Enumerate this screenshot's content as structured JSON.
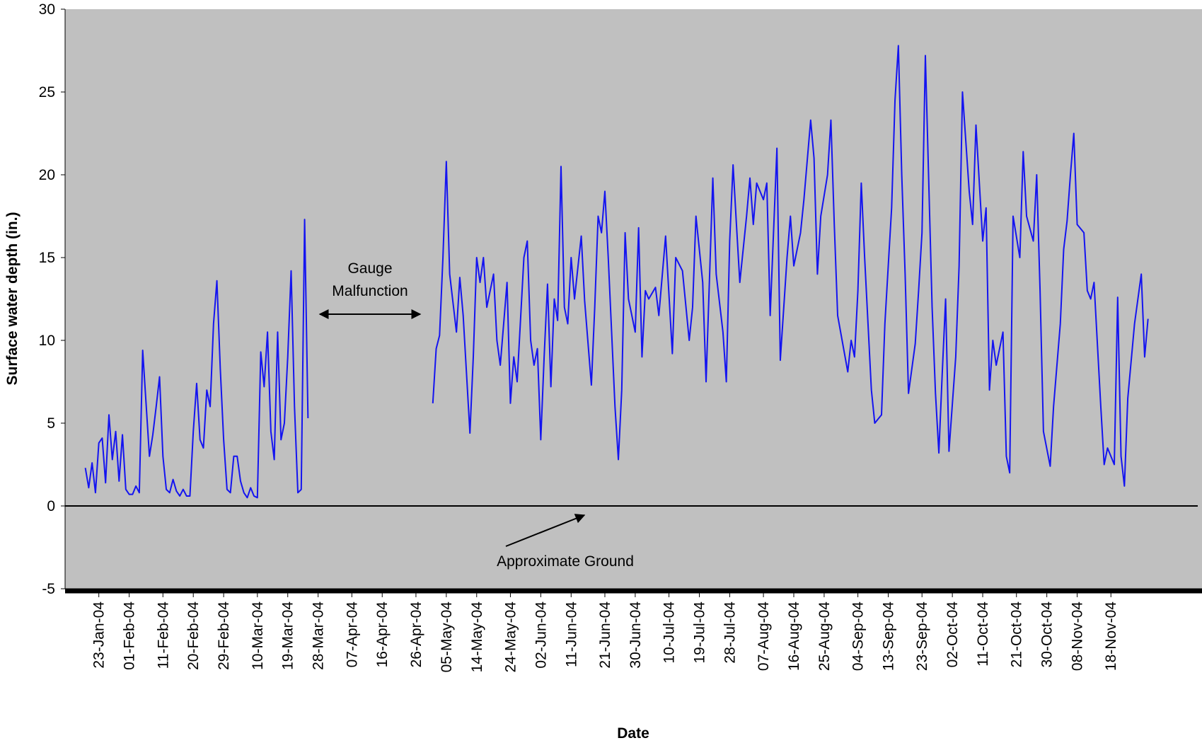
{
  "chart_data": {
    "type": "line",
    "x_label": "Date",
    "y_label": "Surface water depth (in.)",
    "xlim": [
      "2004-01-13",
      "2004-12-15"
    ],
    "ylim": [
      -5,
      30
    ],
    "yticks": [
      -5,
      0,
      5,
      10,
      15,
      20,
      25,
      30
    ],
    "xticks": [
      {
        "value": "2004-01-23",
        "label": "23-Jan-04"
      },
      {
        "value": "2004-02-01",
        "label": "01-Feb-04"
      },
      {
        "value": "2004-02-11",
        "label": "11-Feb-04"
      },
      {
        "value": "2004-02-20",
        "label": "20-Feb-04"
      },
      {
        "value": "2004-02-29",
        "label": "29-Feb-04"
      },
      {
        "value": "2004-03-10",
        "label": "10-Mar-04"
      },
      {
        "value": "2004-03-19",
        "label": "19-Mar-04"
      },
      {
        "value": "2004-03-28",
        "label": "28-Mar-04"
      },
      {
        "value": "2004-04-07",
        "label": "07-Apr-04"
      },
      {
        "value": "2004-04-16",
        "label": "16-Apr-04"
      },
      {
        "value": "2004-04-26",
        "label": "26-Apr-04"
      },
      {
        "value": "2004-05-05",
        "label": "05-May-04"
      },
      {
        "value": "2004-05-14",
        "label": "14-May-04"
      },
      {
        "value": "2004-05-24",
        "label": "24-May-04"
      },
      {
        "value": "2004-06-02",
        "label": "02-Jun-04"
      },
      {
        "value": "2004-06-11",
        "label": "11-Jun-04"
      },
      {
        "value": "2004-06-21",
        "label": "21-Jun-04"
      },
      {
        "value": "2004-06-30",
        "label": "30-Jun-04"
      },
      {
        "value": "2004-07-10",
        "label": "10-Jul-04"
      },
      {
        "value": "2004-07-19",
        "label": "19-Jul-04"
      },
      {
        "value": "2004-07-28",
        "label": "28-Jul-04"
      },
      {
        "value": "2004-08-07",
        "label": "07-Aug-04"
      },
      {
        "value": "2004-08-16",
        "label": "16-Aug-04"
      },
      {
        "value": "2004-08-25",
        "label": "25-Aug-04"
      },
      {
        "value": "2004-09-04",
        "label": "04-Sep-04"
      },
      {
        "value": "2004-09-13",
        "label": "13-Sep-04"
      },
      {
        "value": "2004-09-23",
        "label": "23-Sep-04"
      },
      {
        "value": "2004-10-02",
        "label": "02-Oct-04"
      },
      {
        "value": "2004-10-11",
        "label": "11-Oct-04"
      },
      {
        "value": "2004-10-21",
        "label": "21-Oct-04"
      },
      {
        "value": "2004-10-30",
        "label": "30-Oct-04"
      },
      {
        "value": "2004-11-08",
        "label": "08-Nov-04"
      },
      {
        "value": "2004-11-18",
        "label": "18-Nov-04"
      }
    ],
    "grid": false,
    "zero_line": true,
    "background": "#c0c0c0",
    "annotations": [
      {
        "lines": [
          "Gauge",
          "Malfunction"
        ]
      },
      {
        "lines": [
          "Approximate Ground"
        ]
      }
    ],
    "x": [
      "2004-01-19",
      "2004-01-20",
      "2004-01-21",
      "2004-01-22",
      "2004-01-23",
      "2004-01-24",
      "2004-01-25",
      "2004-01-26",
      "2004-01-27",
      "2004-01-28",
      "2004-01-29",
      "2004-01-30",
      "2004-01-31",
      "2004-02-01",
      "2004-02-02",
      "2004-02-03",
      "2004-02-04",
      "2004-02-05",
      "2004-02-06",
      "2004-02-07",
      "2004-02-08",
      "2004-02-09",
      "2004-02-10",
      "2004-02-11",
      "2004-02-12",
      "2004-02-13",
      "2004-02-14",
      "2004-02-15",
      "2004-02-16",
      "2004-02-17",
      "2004-02-18",
      "2004-02-19",
      "2004-02-20",
      "2004-02-21",
      "2004-02-22",
      "2004-02-23",
      "2004-02-24",
      "2004-02-25",
      "2004-02-26",
      "2004-02-27",
      "2004-02-28",
      "2004-02-29",
      "2004-03-01",
      "2004-03-02",
      "2004-03-03",
      "2004-03-04",
      "2004-03-05",
      "2004-03-06",
      "2004-03-07",
      "2004-03-08",
      "2004-03-09",
      "2004-03-10",
      "2004-03-11",
      "2004-03-12",
      "2004-03-13",
      "2004-03-14",
      "2004-03-15",
      "2004-03-16",
      "2004-03-17",
      "2004-03-18",
      "2004-03-19",
      "2004-03-20",
      "2004-03-21",
      "2004-03-22",
      "2004-03-23",
      "2004-03-24",
      "2004-03-25",
      "2004-04-13",
      "2004-05-01",
      "2004-05-02",
      "2004-05-03",
      "2004-05-04",
      "2004-05-05",
      "2004-05-06",
      "2004-05-08",
      "2004-05-09",
      "2004-05-10",
      "2004-05-12",
      "2004-05-13",
      "2004-05-14",
      "2004-05-15",
      "2004-05-16",
      "2004-05-17",
      "2004-05-19",
      "2004-05-20",
      "2004-05-21",
      "2004-05-23",
      "2004-05-24",
      "2004-05-25",
      "2004-05-26",
      "2004-05-28",
      "2004-05-29",
      "2004-05-30",
      "2004-05-31",
      "2004-06-01",
      "2004-06-02",
      "2004-06-03",
      "2004-06-04",
      "2004-06-05",
      "2004-06-06",
      "2004-06-07",
      "2004-06-08",
      "2004-06-09",
      "2004-06-10",
      "2004-06-11",
      "2004-06-12",
      "2004-06-14",
      "2004-06-15",
      "2004-06-17",
      "2004-06-18",
      "2004-06-19",
      "2004-06-20",
      "2004-06-21",
      "2004-06-22",
      "2004-06-24",
      "2004-06-25",
      "2004-06-26",
      "2004-06-27",
      "2004-06-28",
      "2004-06-30",
      "2004-07-01",
      "2004-07-02",
      "2004-07-03",
      "2004-07-04",
      "2004-07-06",
      "2004-07-07",
      "2004-07-09",
      "2004-07-11",
      "2004-07-12",
      "2004-07-14",
      "2004-07-16",
      "2004-07-17",
      "2004-07-18",
      "2004-07-20",
      "2004-07-21",
      "2004-07-23",
      "2004-07-24",
      "2004-07-26",
      "2004-07-27",
      "2004-07-28",
      "2004-07-29",
      "2004-07-30",
      "2004-07-31",
      "2004-08-02",
      "2004-08-03",
      "2004-08-04",
      "2004-08-05",
      "2004-08-07",
      "2004-08-08",
      "2004-08-09",
      "2004-08-11",
      "2004-08-12",
      "2004-08-14",
      "2004-08-15",
      "2004-08-16",
      "2004-08-18",
      "2004-08-19",
      "2004-08-21",
      "2004-08-22",
      "2004-08-23",
      "2004-08-24",
      "2004-08-26",
      "2004-08-27",
      "2004-08-28",
      "2004-08-29",
      "2004-09-01",
      "2004-09-02",
      "2004-09-03",
      "2004-09-04",
      "2004-09-05",
      "2004-09-06",
      "2004-09-08",
      "2004-09-09",
      "2004-09-11",
      "2004-09-12",
      "2004-09-14",
      "2004-09-15",
      "2004-09-16",
      "2004-09-17",
      "2004-09-18",
      "2004-09-19",
      "2004-09-21",
      "2004-09-22",
      "2004-09-23",
      "2004-09-24",
      "2004-09-26",
      "2004-09-27",
      "2004-09-28",
      "2004-09-29",
      "2004-09-30",
      "2004-10-01",
      "2004-10-03",
      "2004-10-04",
      "2004-10-05",
      "2004-10-07",
      "2004-10-08",
      "2004-10-09",
      "2004-10-11",
      "2004-10-12",
      "2004-10-13",
      "2004-10-14",
      "2004-10-15",
      "2004-10-17",
      "2004-10-18",
      "2004-10-19",
      "2004-10-20",
      "2004-10-22",
      "2004-10-23",
      "2004-10-24",
      "2004-10-26",
      "2004-10-27",
      "2004-10-28",
      "2004-10-29",
      "2004-10-31",
      "2004-11-01",
      "2004-11-03",
      "2004-11-04",
      "2004-11-05",
      "2004-11-06",
      "2004-11-07",
      "2004-11-08",
      "2004-11-10",
      "2004-11-11",
      "2004-11-12",
      "2004-11-13",
      "2004-11-15",
      "2004-11-16",
      "2004-11-17",
      "2004-11-19",
      "2004-11-20",
      "2004-11-21",
      "2004-11-22",
      "2004-11-23",
      "2004-11-25",
      "2004-11-26",
      "2004-11-27",
      "2004-11-28",
      "2004-11-29"
    ],
    "series": [
      {
        "name": "Surface water depth",
        "color": "#1414f0",
        "values": [
          2.3,
          1.1,
          2.6,
          0.8,
          3.8,
          4.1,
          1.4,
          5.5,
          2.8,
          4.5,
          1.5,
          4.3,
          1.0,
          0.7,
          0.7,
          1.2,
          0.8,
          9.4,
          6.2,
          3.0,
          4.3,
          6.0,
          7.8,
          3.0,
          1.0,
          0.8,
          1.6,
          0.9,
          0.6,
          1.0,
          0.6,
          0.6,
          4.5,
          7.4,
          4.0,
          3.5,
          7.0,
          6.0,
          11.0,
          13.6,
          8.3,
          4.0,
          1.0,
          0.8,
          3.0,
          3.0,
          1.5,
          0.8,
          0.5,
          1.1,
          0.6,
          0.5,
          9.3,
          7.2,
          10.5,
          4.5,
          2.8,
          10.5,
          4.0,
          5.0,
          9.0,
          14.2,
          6.0,
          0.8,
          1.0,
          17.3,
          5.3,
          null,
          6.2,
          9.5,
          10.3,
          15,
          20.8,
          14,
          10.5,
          13.8,
          11.5,
          4.4,
          9,
          15,
          13.5,
          15,
          12,
          14,
          10,
          8.5,
          13.5,
          6.2,
          9,
          7.5,
          15,
          16,
          10,
          8.5,
          9.5,
          4,
          9,
          13.4,
          7.2,
          12.5,
          11.2,
          20.5,
          12,
          11,
          15,
          12.5,
          16.3,
          12.4,
          7.3,
          12,
          17.5,
          16.5,
          19,
          15,
          6,
          2.8,
          7,
          16.5,
          12.5,
          10.5,
          16.8,
          9,
          13,
          12.5,
          13.2,
          11.5,
          16.3,
          9.2,
          15,
          14.2,
          10,
          12,
          17.5,
          13.5,
          7.5,
          19.8,
          14,
          10.5,
          7.5,
          16,
          20.6,
          17,
          13.5,
          17.5,
          19.8,
          17,
          19.5,
          18.5,
          19.5,
          11.5,
          21.6,
          8.8,
          15,
          17.5,
          14.5,
          16.5,
          18.5,
          23.3,
          21,
          14,
          17.5,
          20,
          23.3,
          17,
          11.5,
          8.1,
          10,
          9,
          13,
          19.5,
          15,
          7,
          5,
          5.5,
          11,
          18,
          24.5,
          27.8,
          20,
          14,
          6.8,
          9.8,
          13,
          16.5,
          27.2,
          12,
          6.8,
          3.2,
          8,
          12.5,
          3.3,
          9,
          14.5,
          25,
          19,
          17,
          23,
          16,
          18,
          7,
          10,
          8.5,
          10.5,
          3,
          2,
          17.5,
          15,
          21.4,
          17.5,
          16,
          20,
          13,
          4.5,
          2.4,
          6,
          11,
          15.5,
          17.2,
          20,
          22.5,
          17,
          16.5,
          13,
          12.5,
          13.5,
          6,
          2.5,
          3.5,
          2.5,
          12.6,
          3,
          1.2,
          6.5,
          11,
          12.5,
          14,
          9,
          11.3
        ]
      }
    ]
  }
}
